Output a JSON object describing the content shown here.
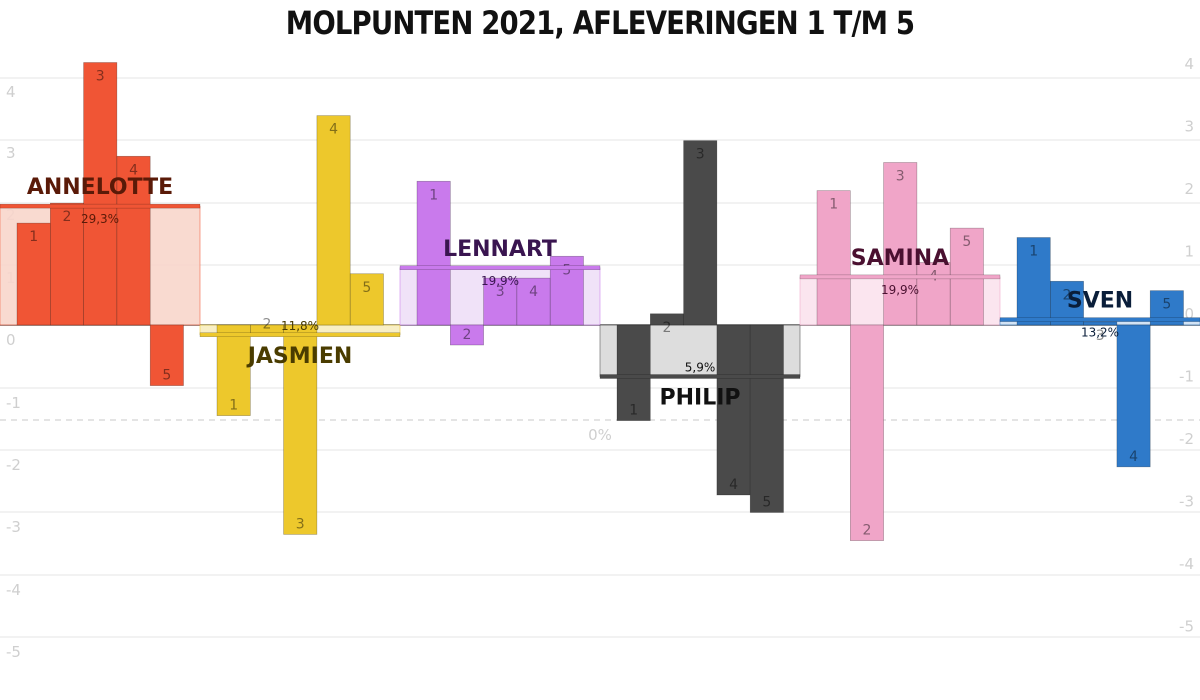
{
  "title": "MOLPUNTEN 2021, AFLEVERINGEN 1 T/M 5",
  "chart_data": {
    "type": "bar",
    "title": "MOLPUNTEN 2021, AFLEVERINGEN 1 T/M 5",
    "xlabel": "",
    "ylabel": "",
    "left_axis": {
      "ylim": [
        -5,
        4
      ],
      "ticks": [
        4,
        3,
        2,
        1,
        0,
        -1,
        -2,
        -3,
        -4,
        -5
      ]
    },
    "right_axis": {
      "ylim": [
        -5,
        4
      ],
      "ticks": [
        4,
        3,
        2,
        1,
        0,
        -1,
        -2,
        -3,
        -4,
        -5
      ]
    },
    "zero_reference_label": "0%",
    "grid": true,
    "episodes": [
      "1",
      "2",
      "3",
      "4",
      "5"
    ],
    "candidates": [
      {
        "name": "ANNELOTTE",
        "percentage": "29,3%",
        "percentage_value": 29.3,
        "color": "#f05535",
        "light_color": "#f9d6cc",
        "name_color": "#5a1a08",
        "values": [
          1.63,
          1.95,
          4.2,
          2.7,
          -0.97
        ]
      },
      {
        "name": "JASMIEN",
        "percentage": "11,8%",
        "percentage_value": 11.8,
        "color": "#edc82c",
        "light_color": "#f8eebf",
        "name_color": "#4a3c00",
        "values": [
          -1.45,
          -0.15,
          -3.35,
          3.35,
          0.82
        ]
      },
      {
        "name": "LENNART",
        "percentage": "19,9%",
        "percentage_value": 19.9,
        "color": "#c97aec",
        "light_color": "#efdff8",
        "name_color": "#3a1550",
        "values": [
          2.3,
          -0.32,
          0.75,
          0.75,
          1.1
        ]
      },
      {
        "name": "PHILIP",
        "percentage": "5,9%",
        "percentage_value": 5.9,
        "color": "#4a4a4a",
        "light_color": "#dadada",
        "name_color": "#111111",
        "values": [
          -1.53,
          0.18,
          2.95,
          -2.72,
          -3.0
        ]
      },
      {
        "name": "SAMINA",
        "percentage": "19,9%",
        "percentage_value": 19.9,
        "color": "#f0a5c8",
        "light_color": "#fbe3ee",
        "name_color": "#4a1030",
        "values": [
          2.15,
          -3.45,
          2.6,
          1.0,
          1.55
        ]
      },
      {
        "name": "SVEN",
        "percentage": "13,2%",
        "percentage_value": 13.2,
        "color": "#2f7ac9",
        "light_color": "#cfe0f3",
        "name_color": "#0a1e3a",
        "values": [
          1.4,
          0.7,
          0.05,
          -2.27,
          0.55
        ]
      }
    ]
  }
}
